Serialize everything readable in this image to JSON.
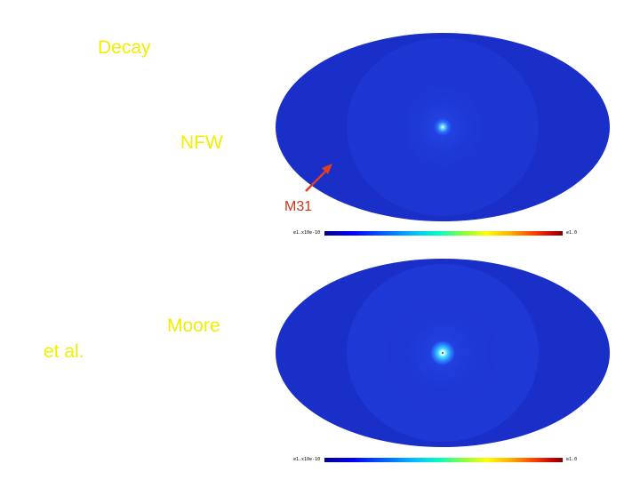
{
  "labels": {
    "decay": "Decay",
    "nfw": "NFW",
    "moore": "Moore",
    "et_al": "et al.",
    "m31": "M31"
  },
  "colorbars": {
    "top": {
      "min_label": "e1.x10e-10",
      "max_label": "e1.0"
    },
    "bottom": {
      "min_label": "e1.x10e-10",
      "max_label": "e1.0"
    }
  },
  "colors": {
    "label_yellow": "#f2ee00",
    "m31_red": "#c43a1a",
    "sky_blue": "#1a2fc7"
  }
}
